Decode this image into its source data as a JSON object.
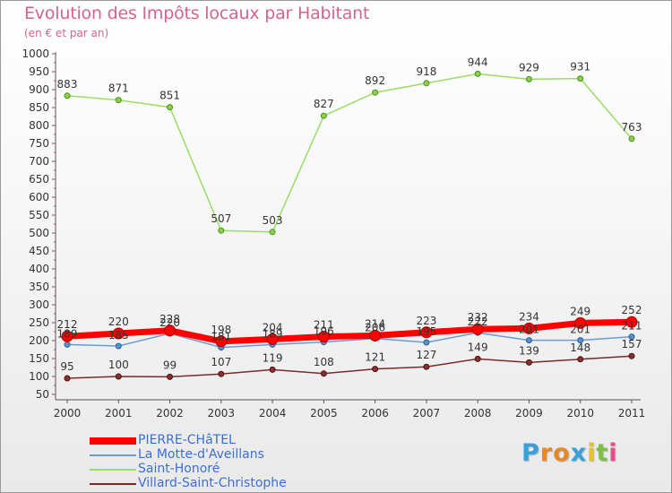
{
  "chart_data": {
    "type": "line",
    "title": "Evolution des Impôts locaux par Habitant",
    "subtitle": "(en € et par an)",
    "xlabel": "",
    "ylabel": "",
    "categories": [
      "2000",
      "2001",
      "2002",
      "2003",
      "2004",
      "2005",
      "2006",
      "2007",
      "2008",
      "2009",
      "2010",
      "2011"
    ],
    "ylim": [
      50,
      1000
    ],
    "yticks": [
      50,
      100,
      150,
      200,
      250,
      300,
      350,
      400,
      450,
      500,
      550,
      600,
      650,
      700,
      750,
      800,
      850,
      900,
      950,
      1000
    ],
    "grid": false,
    "legend_position": "bottom-left",
    "series": [
      {
        "name": "PIERRE-CHâTEL",
        "color": "#ff0000",
        "values": [
          212,
          220,
          228,
          198,
          204,
          211,
          214,
          223,
          232,
          234,
          249,
          252
        ]
      },
      {
        "name": "La Motte-d'Aveillans",
        "color": "#6b9bd1",
        "values": [
          189,
          185,
          220,
          181,
          189,
          196,
          206,
          195,
          222,
          201,
          201,
          211
        ]
      },
      {
        "name": "Saint-Honoré",
        "color": "#99dd66",
        "values": [
          883,
          871,
          851,
          507,
          503,
          827,
          892,
          918,
          944,
          929,
          931,
          763
        ]
      },
      {
        "name": "Villard-Saint-Christophe",
        "color": "#7a2a2a",
        "values": [
          95,
          100,
          99,
          107,
          119,
          108,
          121,
          127,
          149,
          139,
          148,
          157
        ]
      }
    ]
  },
  "logo": {
    "letters": [
      "P",
      "r",
      "o",
      "x",
      "i",
      "t",
      "i"
    ],
    "colors": [
      "#3aa0d8",
      "#e8862a",
      "#e8862a",
      "#3aa0d8",
      "#e8c22a",
      "#7cc242",
      "#e84a8a"
    ]
  }
}
